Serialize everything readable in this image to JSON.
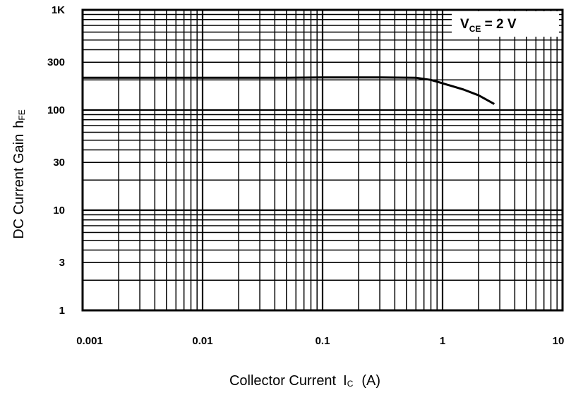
{
  "chart_data": {
    "type": "line",
    "title": "",
    "xlabel": "Collector Current",
    "xlabel_symbol": "I",
    "xlabel_sub": "C",
    "xlabel_unit": "(A)",
    "ylabel": "DC Current Gain",
    "ylabel_symbol": "h",
    "ylabel_sub": "FE",
    "x_scale": "log",
    "y_scale": "log",
    "xlim": [
      0.001,
      10
    ],
    "ylim": [
      1,
      1000
    ],
    "x_ticks": [
      {
        "value": 0.001,
        "label": "0.001"
      },
      {
        "value": 0.01,
        "label": "0.01"
      },
      {
        "value": 0.1,
        "label": "0.1"
      },
      {
        "value": 1,
        "label": "1"
      },
      {
        "value": 10,
        "label": "10"
      }
    ],
    "y_ticks": [
      {
        "value": 1,
        "label": "1"
      },
      {
        "value": 3,
        "label": "3"
      },
      {
        "value": 10,
        "label": "10"
      },
      {
        "value": 30,
        "label": "30"
      },
      {
        "value": 100,
        "label": "100"
      },
      {
        "value": 300,
        "label": "300"
      },
      {
        "value": 1000,
        "label": "1K"
      }
    ],
    "grid": true,
    "annotation": {
      "main": "V",
      "sub": "CE",
      "rest": " =  2 V",
      "placement": "top-right"
    },
    "series": [
      {
        "color": "#000000",
        "x": [
          0.001,
          0.002,
          0.01,
          0.05,
          0.1,
          0.3,
          0.6,
          0.8,
          1.0,
          1.5,
          2.0,
          2.7
        ],
        "y": [
          210,
          210,
          210,
          210,
          212,
          212,
          210,
          200,
          185,
          160,
          140,
          115
        ]
      }
    ]
  }
}
